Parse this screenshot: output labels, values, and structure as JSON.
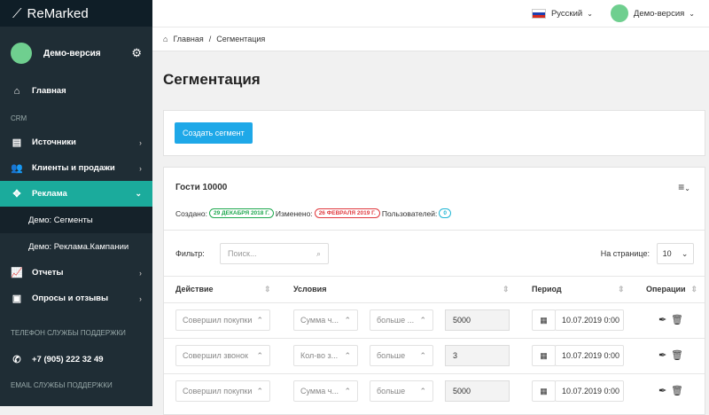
{
  "brand": "ReMarked",
  "sidebar": {
    "user": "Демо-версия",
    "home": "Главная",
    "crm_label": "CRM",
    "items": [
      {
        "label": "Источники",
        "icon": "list-icon"
      },
      {
        "label": "Клиенты и продажи",
        "icon": "users-icon"
      },
      {
        "label": "Реклама",
        "icon": "target-icon"
      }
    ],
    "sub": [
      "Демо: Сегменты",
      "Демо: Реклама.Кампании"
    ],
    "items2": [
      {
        "label": "Отчеты",
        "icon": "chart-icon"
      },
      {
        "label": "Опросы и отзывы",
        "icon": "clipboard-icon"
      }
    ],
    "phone_label": "Телефон службы поддержки",
    "phone": "+7 (905) 222 32 49",
    "email_label": "Email службы поддержки"
  },
  "topbar": {
    "language": "Русский",
    "user": "Демо-версия"
  },
  "breadcrumb": {
    "home": "Главная",
    "sep": "/",
    "current": "Сегментация"
  },
  "page_title": "Сегментация",
  "create_button": "Создать сегмент",
  "segment": {
    "title": "Гости 10000",
    "created_label": "Создано:",
    "created": "29 ДЕКАБРЯ 2018 Г.",
    "modified_label": "Изменено:",
    "modified": "26 ФЕВРАЛЯ 2019 Г.",
    "users_label": "Пользователей:",
    "users": "0",
    "filter_label": "Фильтр:",
    "filter_placeholder": "Поиск...",
    "per_page_label": "На странице:",
    "per_page": "10",
    "columns": [
      "Действие",
      "Условия",
      "Период",
      "Операции"
    ],
    "rows": [
      {
        "action": "Совершил покупки",
        "cond": "Сумма ч...",
        "op": "больше ...",
        "value": "5000",
        "date": "10.07.2019 0:00"
      },
      {
        "action": "Совершил звонок",
        "cond": "Кол-во з...",
        "op": "больше",
        "value": "3",
        "date": "10.07.2019 0:00"
      },
      {
        "action": "Совершил покупки",
        "cond": "Сумма ч...",
        "op": "больше",
        "value": "5000",
        "date": "10.07.2019 0:00"
      }
    ]
  },
  "colors": {
    "accent": "#1bab9c",
    "button": "#1ea8e8",
    "green": "#1fa84f",
    "red": "#e0393e",
    "cyan": "#1fb5d4"
  }
}
